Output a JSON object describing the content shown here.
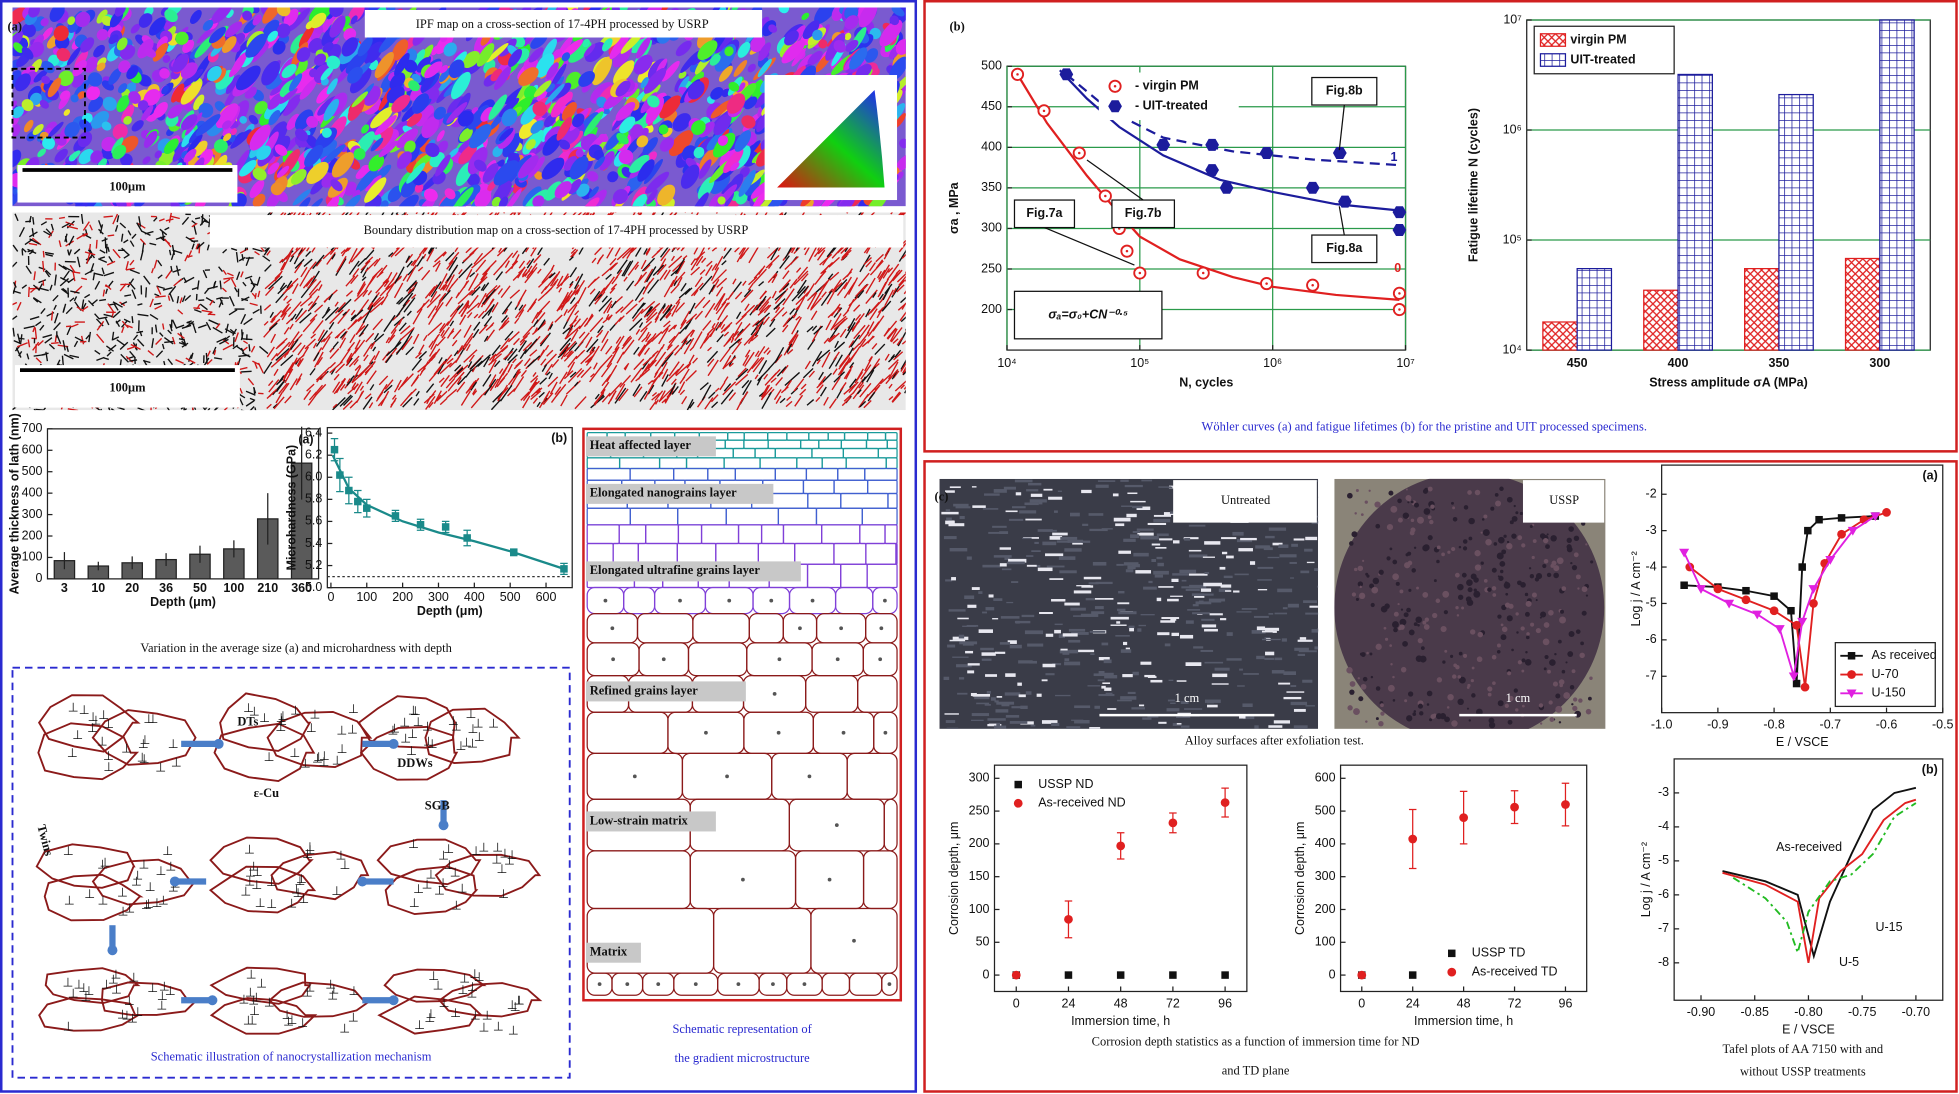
{
  "panel_a": {
    "label": "(a)",
    "ipf_title": "IPF map on a cross-section of 17-4PH processed by USRP",
    "ipf_scale": "100μm",
    "boundary_title": "Boundary distribution map on a cross-section of 17-4PH processed by USRP",
    "boundary_scale": "100μm",
    "lath": {
      "type": "bar",
      "panel": "(a)",
      "ylabel": "Average thickness of lath (nm)",
      "xlabel": "Depth (μm)",
      "categories": [
        "3",
        "10",
        "20",
        "36",
        "50",
        "100",
        "210",
        "360"
      ],
      "values": [
        85,
        60,
        75,
        90,
        115,
        140,
        280,
        540
      ],
      "errors": [
        40,
        20,
        30,
        30,
        40,
        40,
        120,
        170
      ],
      "color": "#5a5a5a",
      "mode": "bars",
      "ylim": [
        0,
        700
      ],
      "yticks": [
        0,
        100,
        200,
        300,
        400,
        500,
        600,
        700
      ]
    },
    "hardness": {
      "type": "line",
      "panel": "(b)",
      "ylabel": "Microhardness (GPa)",
      "xlabel": "Depth (μm)",
      "x": [
        10,
        25,
        50,
        75,
        100,
        180,
        250,
        320,
        380,
        510,
        650
      ],
      "values": [
        6.25,
        6.02,
        5.88,
        5.78,
        5.72,
        5.65,
        5.57,
        5.55,
        5.45,
        5.32,
        5.17
      ],
      "errors": [
        0.1,
        0.15,
        0.12,
        0.1,
        0.08,
        0.05,
        0.05,
        0.05,
        0.07,
        0.03,
        0.05
      ],
      "color": "#1a8a8a",
      "mode": "markers",
      "marker": "square",
      "hline": 5.1,
      "curves": [
        {
          "color": "#1a8a8a",
          "x": [
            5,
            50,
            100,
            200,
            300,
            400,
            500,
            650
          ],
          "values": [
            6.2,
            5.9,
            5.75,
            5.6,
            5.5,
            5.42,
            5.33,
            5.17
          ]
        }
      ],
      "xlim": [
        -10,
        673
      ],
      "xticks": [
        0,
        100,
        200,
        300,
        400,
        500,
        600
      ],
      "ylim": [
        5.0,
        6.45
      ],
      "yticks": [
        {
          "value": 5.0,
          "label": "5.0"
        },
        5.2,
        5.4,
        5.6,
        5.8,
        {
          "value": 6.0,
          "label": "6.0"
        },
        6.2,
        6.4
      ]
    },
    "charts_caption": "Variation in the average size (a) and microhardness with depth",
    "mechanism": {
      "labels": [
        "DTs",
        "ε-Cu",
        "DDWs",
        "SGB",
        "Twins"
      ],
      "caption": "Schematic illustration of nanocrystallization mechanism"
    },
    "gradient": {
      "layers": [
        "Heat affected layer",
        "Elongated nanograins layer",
        "Elongated ultrafine grains layer",
        "Refined grains layer",
        "Low-strain matrix",
        "Matrix"
      ],
      "caption": [
        "Schematic representation of",
        "the gradient microstructure"
      ]
    }
  },
  "panel_b": {
    "label": "(b)",
    "wohler": {
      "type": "scatter",
      "xlabel": "N, cycles",
      "ylabel": "σa , MPa",
      "xlog": true,
      "xlim": [
        10000,
        10000000
      ],
      "xticks": [
        {
          "value": 10000,
          "label": "10⁴"
        },
        {
          "value": 100000,
          "label": "10⁵"
        },
        {
          "value": 1000000,
          "label": "10⁶"
        },
        {
          "value": 10000000,
          "label": "10⁷"
        }
      ],
      "ylim": [
        150,
        500
      ],
      "yticks": [
        200,
        250,
        300,
        350,
        400,
        450,
        500
      ],
      "grid": true,
      "legend": "upper center",
      "series": [
        {
          "name": "- virgin PM",
          "color": "#e02020",
          "marker": "circle-open",
          "mode": "markers",
          "x": [
            12000,
            19000,
            35000,
            55000,
            70000,
            80000,
            100000,
            300000,
            900000,
            2000000,
            9000000,
            9000000
          ],
          "values": [
            490,
            445,
            393,
            340,
            300,
            272,
            245,
            245,
            232,
            230,
            220,
            200
          ]
        },
        {
          "name": "- UIT-treated",
          "color": "#1c1c9c",
          "marker": "hexagon",
          "mode": "markers",
          "x": [
            28000,
            55000,
            150000,
            350000,
            350000,
            450000,
            900000,
            2000000,
            3200000,
            3500000,
            9000000,
            9000000
          ],
          "values": [
            490,
            448,
            403,
            372,
            403,
            350,
            393,
            350,
            393,
            333,
            320,
            298
          ]
        }
      ],
      "curves": [
        {
          "color": "#e02020",
          "x": [
            12000,
            20000,
            40000,
            70000,
            100000,
            200000,
            500000,
            1000000,
            3000000,
            9000000
          ],
          "values": [
            490,
            430,
            365,
            318,
            290,
            262,
            240,
            228,
            218,
            212
          ]
        },
        {
          "color": "#1c1c9c",
          "x": [
            25000,
            40000,
            70000,
            150000,
            400000,
            1000000,
            3000000,
            9000000
          ],
          "values": [
            495,
            460,
            425,
            390,
            360,
            345,
            330,
            322
          ]
        },
        {
          "color": "#1c1c9c",
          "dash": true,
          "x": [
            28000,
            60000,
            150000,
            500000,
            2000000,
            9000000
          ],
          "values": [
            490,
            445,
            412,
            395,
            385,
            378
          ]
        }
      ],
      "annotations": [
        "Fig.7a",
        "Fig.7b",
        "Fig.8a",
        "Fig.8b",
        "1",
        "0",
        "σₐ=σ₀+CN⁻⁰·⁵"
      ]
    },
    "lifetime": {
      "type": "bar",
      "xlabel": "Stress amplitude σA (MPa)",
      "ylabel": "Fatigue lifetime N (cycles)",
      "ylog": true,
      "ylim": [
        10000,
        10000000
      ],
      "yticks": [
        {
          "value": 10000,
          "label": "10⁴"
        },
        {
          "value": 100000,
          "label": "10⁵"
        },
        {
          "value": 1000000,
          "label": "10⁶"
        },
        {
          "value": 10000000,
          "label": "10⁷"
        }
      ],
      "categories": [
        "450",
        "400",
        "350",
        "300"
      ],
      "grid": true,
      "legend": "upper left",
      "series": [
        {
          "name": "virgin PM",
          "color": "#e02020",
          "hatch": "cross",
          "mode": "bars",
          "values": [
            18000,
            35000,
            55000,
            68000
          ]
        },
        {
          "name": "UIT-treated",
          "color": "#1c1c9c",
          "hatch": "grid",
          "mode": "bars",
          "values": [
            55000,
            3200000,
            2100000,
            10000000
          ]
        }
      ]
    },
    "caption": "Wöhler curves (a) and fatigue lifetimes (b) for the pristine and UIT processed specimens."
  },
  "panel_c": {
    "label": "(c)",
    "photo_left": "Untreated",
    "photo_right": "USSP",
    "scale_left": "1 cm",
    "scale_right": "1 cm",
    "photos_caption": "Alloy surfaces after exfoliation test.",
    "nd": {
      "type": "scatter",
      "xlabel": "Immersion time, h",
      "ylabel": "Corrosion depth, μm",
      "x": [
        0,
        24,
        48,
        72,
        96
      ],
      "xlim": [
        -10,
        106
      ],
      "xticks": [
        0,
        24,
        48,
        72,
        96
      ],
      "ylim": [
        -25,
        320
      ],
      "yticks": [
        0,
        50,
        100,
        150,
        200,
        250,
        300
      ],
      "legend": "upper left",
      "series": [
        {
          "name": "USSP ND",
          "color": "#111111",
          "marker": "square",
          "mode": "markers",
          "values": [
            0,
            0,
            0,
            0,
            0
          ]
        },
        {
          "name": "As-received ND",
          "color": "#e02020",
          "marker": "circle",
          "mode": "markers",
          "values": [
            0,
            85,
            197,
            232,
            263
          ],
          "errors": [
            0,
            28,
            20,
            15,
            22
          ]
        }
      ]
    },
    "td": {
      "type": "scatter",
      "xlabel": "Immersion time, h",
      "ylabel": "Corrosion depth, μm",
      "x": [
        0,
        24,
        48,
        72,
        96
      ],
      "xlim": [
        -10,
        106
      ],
      "xticks": [
        0,
        24,
        48,
        72,
        96
      ],
      "ylim": [
        -50,
        640
      ],
      "yticks": [
        0,
        100,
        200,
        300,
        400,
        500,
        600
      ],
      "legend": "lower right",
      "series": [
        {
          "name": "USSP TD",
          "color": "#111111",
          "marker": "square",
          "mode": "markers",
          "values": [
            0,
            0,
            0,
            0,
            0
          ]
        },
        {
          "name": "As-received TD",
          "color": "#e02020",
          "marker": "circle",
          "mode": "markers",
          "values": [
            0,
            415,
            480,
            512,
            520
          ],
          "errors": [
            0,
            90,
            80,
            50,
            65
          ]
        }
      ]
    },
    "corrosion_caption": [
      "Corrosion depth statistics as a function of immersion time for ND",
      "and TD plane"
    ],
    "polarization": {
      "type": "line",
      "panel": "(a)",
      "xlabel": "E / VSCE",
      "ylabel": "Log j / A cm⁻²",
      "xlim": [
        -1.0,
        -0.5
      ],
      "xticks": [
        {
          "value": -1.0,
          "label": "-1.0"
        },
        -0.9,
        -0.8,
        -0.7,
        -0.6,
        -0.5
      ],
      "ylim": [
        -8,
        -1.2
      ],
      "yticks": [
        -7,
        -6,
        -5,
        -4,
        -3,
        -2
      ],
      "legend": "lower right",
      "series": [
        {
          "name": "As received",
          "color": "#111111",
          "marker": "square",
          "mode": "lines+markers",
          "x": [
            -0.96,
            -0.9,
            -0.85,
            -0.8,
            -0.77,
            -0.76,
            -0.75,
            -0.74,
            -0.72,
            -0.68,
            -0.62
          ],
          "values": [
            -4.5,
            -4.55,
            -4.65,
            -4.8,
            -5.2,
            -7.2,
            -4.0,
            -3.0,
            -2.7,
            -2.65,
            -2.6
          ]
        },
        {
          "name": "U-70",
          "color": "#e02020",
          "marker": "circle",
          "mode": "lines+markers",
          "x": [
            -0.95,
            -0.9,
            -0.85,
            -0.8,
            -0.76,
            -0.745,
            -0.73,
            -0.71,
            -0.68,
            -0.64,
            -0.6
          ],
          "values": [
            -4.0,
            -4.6,
            -4.9,
            -5.2,
            -5.6,
            -7.3,
            -5.0,
            -3.9,
            -3.1,
            -2.7,
            -2.5
          ]
        },
        {
          "name": "U-150",
          "color": "#e020e0",
          "marker": "triangle-down",
          "mode": "lines+markers",
          "x": [
            -0.96,
            -0.93,
            -0.88,
            -0.83,
            -0.79,
            -0.765,
            -0.75,
            -0.73,
            -0.7,
            -0.66,
            -0.62
          ],
          "values": [
            -3.6,
            -4.6,
            -5.0,
            -5.3,
            -5.7,
            -7.0,
            -5.5,
            -4.6,
            -3.8,
            -3.0,
            -2.6
          ]
        }
      ]
    },
    "tafel": {
      "type": "line",
      "panel": "(b)",
      "xlabel": "E / VSCE",
      "ylabel": "Log j / A cm⁻²",
      "xlim": [
        -0.925,
        -0.675
      ],
      "xticks": [
        {
          "value": -0.9,
          "label": "-0.90"
        },
        -0.85,
        {
          "value": -0.8,
          "label": "-0.80"
        },
        -0.75,
        {
          "value": -0.7,
          "label": "-0.70"
        }
      ],
      "ylim": [
        -9.1,
        -2
      ],
      "yticks": [
        -8,
        -7,
        -6,
        -5,
        -4,
        -3
      ],
      "legend": "inline",
      "series": [
        {
          "name": "As-received",
          "color": "#111111",
          "mode": "lines",
          "x": [
            -0.88,
            -0.84,
            -0.81,
            -0.795,
            -0.78,
            -0.76,
            -0.74,
            -0.72,
            -0.7
          ],
          "values": [
            -5.3,
            -5.6,
            -6.0,
            -7.8,
            -6.2,
            -4.8,
            -3.5,
            -3.0,
            -2.85
          ]
        },
        {
          "name": "U-5",
          "color": "#e02020",
          "mode": "lines",
          "x": [
            -0.88,
            -0.84,
            -0.81,
            -0.8,
            -0.79,
            -0.77,
            -0.75,
            -0.73,
            -0.71,
            -0.7
          ],
          "values": [
            -5.35,
            -5.7,
            -6.2,
            -8.0,
            -6.1,
            -5.3,
            -4.8,
            -3.8,
            -3.3,
            -3.2
          ]
        },
        {
          "name": "U-15",
          "color": "#22bb22",
          "mode": "lines",
          "dash": true,
          "x": [
            -0.87,
            -0.84,
            -0.82,
            -0.81,
            -0.8,
            -0.78,
            -0.76,
            -0.74,
            -0.72,
            -0.7
          ],
          "values": [
            -5.5,
            -6.1,
            -6.8,
            -7.7,
            -6.5,
            -5.6,
            -5.4,
            -4.8,
            -3.7,
            -3.3
          ]
        }
      ]
    },
    "tafel_caption": [
      "Tafel plots of AA 7150 with and",
      "without USSP treatments"
    ]
  }
}
